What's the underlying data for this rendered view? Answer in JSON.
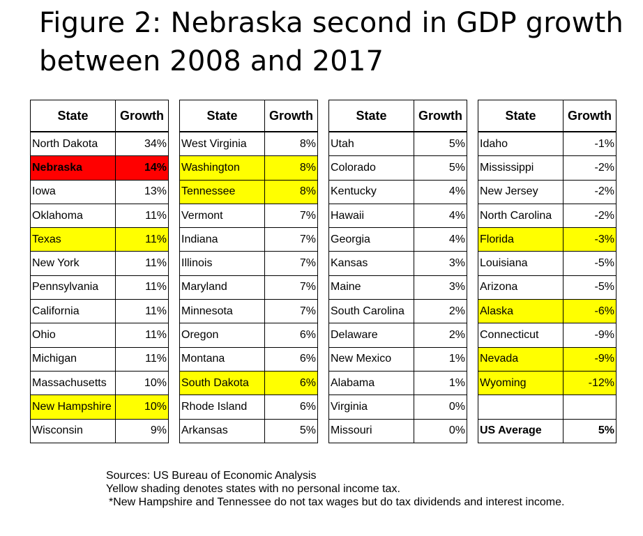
{
  "title": {
    "line1": "Figure 2: Nebraska second in GDP growth",
    "line2": "between 2008 and 2017"
  },
  "colors": {
    "no_income_tax": "#ffff00",
    "nebraska": "#ff0000"
  },
  "chart_data": {
    "type": "table",
    "columns": [
      "State",
      "Growth"
    ],
    "tables": [
      {
        "rows": [
          {
            "state": "North Dakota",
            "growth": "34%",
            "highlight": "none"
          },
          {
            "state": "Nebraska",
            "growth": "14%",
            "highlight": "red"
          },
          {
            "state": "Iowa",
            "growth": "13%",
            "highlight": "none"
          },
          {
            "state": "Oklahoma",
            "growth": "11%",
            "highlight": "none"
          },
          {
            "state": "Texas",
            "growth": "11%",
            "highlight": "yellow"
          },
          {
            "state": "New York",
            "growth": "11%",
            "highlight": "none"
          },
          {
            "state": "Pennsylvania",
            "growth": "11%",
            "highlight": "none"
          },
          {
            "state": "California",
            "growth": "11%",
            "highlight": "none"
          },
          {
            "state": "Ohio",
            "growth": "11%",
            "highlight": "none"
          },
          {
            "state": "Michigan",
            "growth": "11%",
            "highlight": "none"
          },
          {
            "state": "Massachusetts",
            "growth": "10%",
            "highlight": "none"
          },
          {
            "state": "New Hampshire",
            "growth": "10%",
            "highlight": "yellow"
          },
          {
            "state": "Wisconsin",
            "growth": "9%",
            "highlight": "none"
          }
        ]
      },
      {
        "rows": [
          {
            "state": "West Virginia",
            "growth": "8%",
            "highlight": "none"
          },
          {
            "state": "Washington",
            "growth": "8%",
            "highlight": "yellow"
          },
          {
            "state": "Tennessee",
            "growth": "8%",
            "highlight": "yellow"
          },
          {
            "state": "Vermont",
            "growth": "7%",
            "highlight": "none"
          },
          {
            "state": "Indiana",
            "growth": "7%",
            "highlight": "none"
          },
          {
            "state": "Illinois",
            "growth": "7%",
            "highlight": "none"
          },
          {
            "state": "Maryland",
            "growth": "7%",
            "highlight": "none"
          },
          {
            "state": "Minnesota",
            "growth": "7%",
            "highlight": "none"
          },
          {
            "state": "Oregon",
            "growth": "6%",
            "highlight": "none"
          },
          {
            "state": "Montana",
            "growth": "6%",
            "highlight": "none"
          },
          {
            "state": "South Dakota",
            "growth": "6%",
            "highlight": "yellow"
          },
          {
            "state": "Rhode Island",
            "growth": "6%",
            "highlight": "none"
          },
          {
            "state": "Arkansas",
            "growth": "5%",
            "highlight": "none"
          }
        ]
      },
      {
        "rows": [
          {
            "state": "Utah",
            "growth": "5%",
            "highlight": "none"
          },
          {
            "state": "Colorado",
            "growth": "5%",
            "highlight": "none"
          },
          {
            "state": "Kentucky",
            "growth": "4%",
            "highlight": "none"
          },
          {
            "state": "Hawaii",
            "growth": "4%",
            "highlight": "none"
          },
          {
            "state": "Georgia",
            "growth": "4%",
            "highlight": "none"
          },
          {
            "state": "Kansas",
            "growth": "3%",
            "highlight": "none"
          },
          {
            "state": "Maine",
            "growth": "3%",
            "highlight": "none"
          },
          {
            "state": "South Carolina",
            "growth": "2%",
            "highlight": "none"
          },
          {
            "state": "Delaware",
            "growth": "2%",
            "highlight": "none"
          },
          {
            "state": "New Mexico",
            "growth": "1%",
            "highlight": "none"
          },
          {
            "state": "Alabama",
            "growth": "1%",
            "highlight": "none"
          },
          {
            "state": "Virginia",
            "growth": "0%",
            "highlight": "none"
          },
          {
            "state": "Missouri",
            "growth": "0%",
            "highlight": "none"
          }
        ]
      },
      {
        "rows": [
          {
            "state": "Idaho",
            "growth": "-1%",
            "highlight": "none"
          },
          {
            "state": "Mississippi",
            "growth": "-2%",
            "highlight": "none"
          },
          {
            "state": "New Jersey",
            "growth": "-2%",
            "highlight": "none"
          },
          {
            "state": "North Carolina",
            "growth": "-2%",
            "highlight": "none"
          },
          {
            "state": "Florida",
            "growth": "-3%",
            "highlight": "yellow"
          },
          {
            "state": "Louisiana",
            "growth": "-5%",
            "highlight": "none"
          },
          {
            "state": "Arizona",
            "growth": "-5%",
            "highlight": "none"
          },
          {
            "state": "Alaska",
            "growth": "-6%",
            "highlight": "yellow"
          },
          {
            "state": "Connecticut",
            "growth": "-9%",
            "highlight": "none"
          },
          {
            "state": "Nevada",
            "growth": "-9%",
            "highlight": "yellow"
          },
          {
            "state": "Wyoming",
            "growth": "-12%",
            "highlight": "yellow"
          },
          {
            "state": "",
            "growth": "",
            "highlight": "none"
          },
          {
            "state": "US Average",
            "growth": "5%",
            "highlight": "avg"
          }
        ]
      }
    ]
  },
  "footer": {
    "source": "Sources: US Bureau of Economic Analysis",
    "yellow_note": "Yellow shading denotes states with no personal income tax.",
    "asterisk_note": "*New Hampshire and Tennessee do not tax wages but do tax  dividends and interest income."
  }
}
